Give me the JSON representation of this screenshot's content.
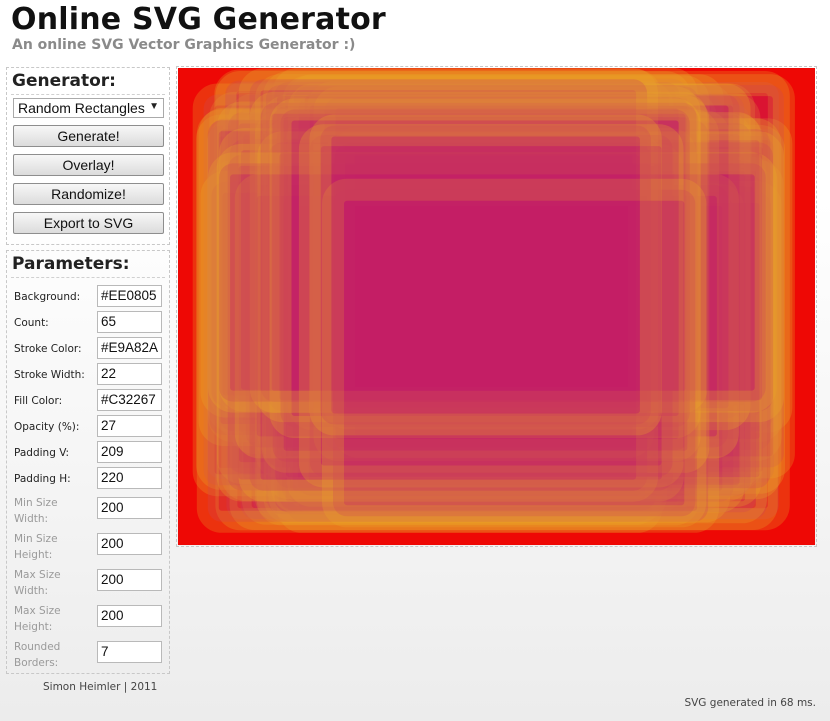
{
  "header": {
    "title": "Online SVG Generator",
    "subtitle": "An online SVG Vector Graphics Generator :)"
  },
  "generator": {
    "heading": "Generator:",
    "selected_type": "Random Rectangles",
    "buttons": {
      "generate": "Generate!",
      "overlay": "Overlay!",
      "randomize": "Randomize!",
      "export": "Export to SVG"
    }
  },
  "parameters": {
    "heading": "Parameters:",
    "fields": [
      {
        "label": "Background:",
        "value": "#EE0805",
        "enabled": true
      },
      {
        "label": "Count:",
        "value": "65",
        "enabled": true
      },
      {
        "label": "Stroke Color:",
        "value": "#E9A82A",
        "enabled": true
      },
      {
        "label": "Stroke Width:",
        "value": "22",
        "enabled": true
      },
      {
        "label": "Fill Color:",
        "value": "#C32267",
        "enabled": true
      },
      {
        "label": "Opacity (%):",
        "value": "27",
        "enabled": true
      },
      {
        "label": "Padding V:",
        "value": "209",
        "enabled": true
      },
      {
        "label": "Padding H:",
        "value": "220",
        "enabled": true
      },
      {
        "label": "Min Size Width:",
        "value": "200",
        "enabled": false
      },
      {
        "label": "Min Size Height:",
        "value": "200",
        "enabled": false
      },
      {
        "label": "Max Size Width:",
        "value": "200",
        "enabled": false
      },
      {
        "label": "Max Size Height:",
        "value": "200",
        "enabled": false
      },
      {
        "label": "Rounded Borders:",
        "value": "7",
        "enabled": false
      }
    ]
  },
  "footer": {
    "credit": "Simon Heimler | 2011",
    "status": "SVG generated in 68 ms."
  },
  "colors": {
    "background": "#EE0805",
    "stroke": "#E9A82A",
    "fill": "#C32267"
  }
}
